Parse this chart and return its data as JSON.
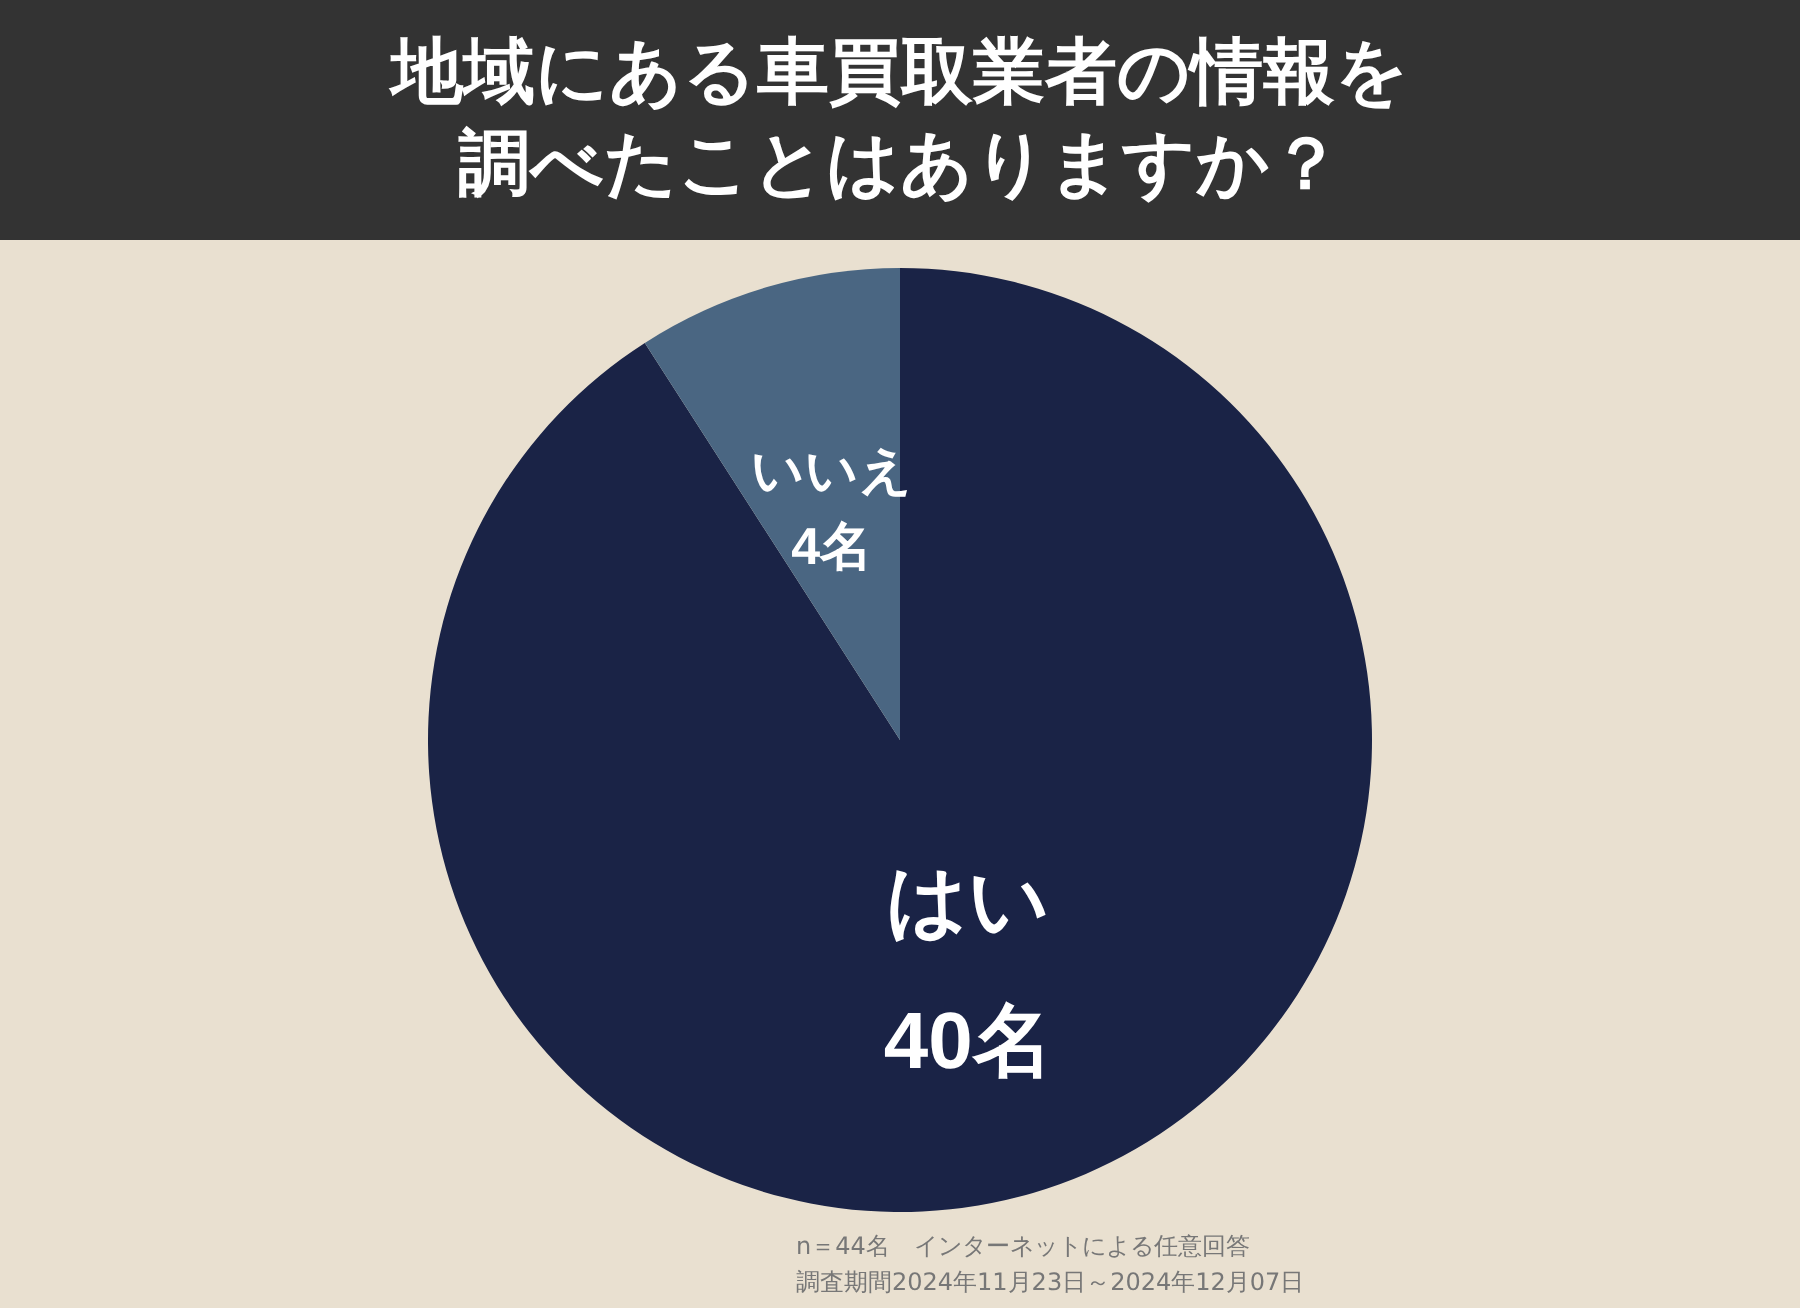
{
  "chart_data": {
    "type": "pie",
    "title": "地域にある車買取業者の情報を調べたことはありますか？",
    "categories": [
      "はい",
      "いいえ"
    ],
    "values": [
      40,
      4
    ],
    "value_labels": [
      "40名",
      "4名"
    ],
    "colors": [
      "#1a2346",
      "#4a6682"
    ],
    "legend": false,
    "annotations": [
      "n＝44名　インターネットによる任意回答",
      "調査期間2024年11月23日～2024年12月07日"
    ]
  }
}
